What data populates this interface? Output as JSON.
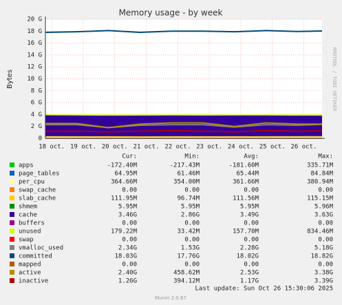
{
  "chart_data": {
    "type": "area",
    "title": "Memory usage - by week",
    "y_label": "Bytes",
    "side_text": "RRDTOOL / TOBI OETIKER",
    "x": [
      17.8,
      18.8,
      19.8,
      20.8,
      21.8,
      22.8,
      23.8,
      24.8,
      25.8,
      26.58
    ],
    "xlim": [
      17.8,
      26.58
    ],
    "xticks": [
      {
        "value": 18,
        "label": "18 oct."
      },
      {
        "value": 19,
        "label": "19 oct."
      },
      {
        "value": 20,
        "label": "20 oct."
      },
      {
        "value": 21,
        "label": "21 oct."
      },
      {
        "value": 22,
        "label": "22 oct."
      },
      {
        "value": 23,
        "label": "23 oct."
      },
      {
        "value": 24,
        "label": "24 oct."
      },
      {
        "value": 25,
        "label": "25 oct."
      },
      {
        "value": 26,
        "label": "26 oct."
      }
    ],
    "ylim": [
      0,
      20
    ],
    "yticks": [
      0,
      {
        "value": 2,
        "label": "2 G"
      },
      {
        "value": 4,
        "label": "4 G"
      },
      {
        "value": 6,
        "label": "6 G"
      },
      {
        "value": 8,
        "label": "8 G"
      },
      {
        "value": 10,
        "label": "10 G"
      },
      {
        "value": 12,
        "label": "12 G"
      },
      {
        "value": 14,
        "label": "14 G"
      },
      {
        "value": 16,
        "label": "16 G"
      },
      {
        "value": 18,
        "label": "18 G"
      },
      {
        "value": 20,
        "label": "20 G"
      }
    ],
    "grid": true,
    "stat_headers": [
      "Cur:",
      "Min:",
      "Avg:",
      "Max:"
    ],
    "series": [
      {
        "name": "apps",
        "color": "#00cc00",
        "stacked": true,
        "values": [
          -0.17,
          -0.18,
          -0.18,
          -0.19,
          -0.18,
          -0.18,
          -0.18,
          -0.18,
          -0.17,
          -0.17
        ],
        "stats": [
          "-172.40M",
          "-217.43M",
          "-181.60M",
          "335.71M"
        ]
      },
      {
        "name": "page_tables",
        "color": "#0066b3",
        "stacked": true,
        "values": [
          0.065,
          0.065,
          0.065,
          0.065,
          0.065,
          0.065,
          0.065,
          0.065,
          0.065,
          0.065
        ],
        "stats": [
          "64.95M",
          "61.46M",
          "65.44M",
          "84.84M"
        ]
      },
      {
        "name": "per_cpu",
        "color": "#ffff99",
        "stacked": true,
        "values": [
          0.36,
          0.36,
          0.36,
          0.36,
          0.36,
          0.36,
          0.36,
          0.36,
          0.36,
          0.36
        ],
        "stats": [
          "364.66M",
          "354.00M",
          "361.66M",
          "380.94M"
        ]
      },
      {
        "name": "swap_cache",
        "color": "#ff8000",
        "stacked": true,
        "values": [
          0,
          0,
          0,
          0,
          0,
          0,
          0,
          0,
          0,
          0
        ],
        "stats": [
          "0.00",
          "0.00",
          "0.00",
          "0.00"
        ]
      },
      {
        "name": "slab_cache",
        "color": "#ffcc00",
        "stacked": true,
        "values": [
          0.11,
          0.11,
          0.11,
          0.11,
          0.11,
          0.11,
          0.11,
          0.11,
          0.11,
          0.11
        ],
        "stats": [
          "111.95M",
          "96.74M",
          "111.56M",
          "115.15M"
        ]
      },
      {
        "name": "shmem",
        "color": "#008f00",
        "stacked": true,
        "values": [
          0.006,
          0.006,
          0.006,
          0.006,
          0.006,
          0.006,
          0.006,
          0.006,
          0.006,
          0.006
        ],
        "stats": [
          "5.95M",
          "5.95M",
          "5.95M",
          "5.96M"
        ]
      },
      {
        "name": "cache",
        "color": "#330099",
        "stacked": true,
        "values": [
          3.5,
          3.5,
          3.45,
          3.5,
          3.5,
          3.48,
          3.5,
          3.5,
          3.46,
          3.46
        ],
        "stats": [
          "3.46G",
          "2.86G",
          "3.49G",
          "3.63G"
        ]
      },
      {
        "name": "buffers",
        "color": "#990099",
        "stacked": true,
        "values": [
          0,
          0,
          0,
          0,
          0,
          0,
          0,
          0,
          0,
          0
        ],
        "stats": [
          "0.00",
          "0.00",
          "0.00",
          "0.00"
        ]
      },
      {
        "name": "unused",
        "color": "#ccff00",
        "stacked": true,
        "values": [
          0.16,
          0.15,
          0.2,
          0.15,
          0.16,
          0.17,
          0.14,
          0.16,
          0.18,
          0.18
        ],
        "stats": [
          "179.22M",
          "33.42M",
          "157.70M",
          "834.46M"
        ]
      },
      {
        "name": "swap",
        "color": "#ff0000",
        "stacked": true,
        "values": [
          0,
          0,
          0,
          0,
          0,
          0,
          0,
          0,
          0,
          0
        ],
        "stats": [
          "0.00",
          "0.00",
          "0.00",
          "0.00"
        ]
      },
      {
        "name": "vmalloc_used",
        "color": "#808080",
        "stacked": false,
        "values": [
          2.3,
          2.3,
          1.8,
          2.2,
          2.3,
          2.3,
          1.9,
          2.3,
          2.2,
          2.34
        ],
        "stats": [
          "2.34G",
          "1.53G",
          "2.28G",
          "5.18G"
        ]
      },
      {
        "name": "committed",
        "color": "#00487d",
        "stacked": false,
        "values": [
          17.8,
          17.9,
          18.1,
          17.8,
          18.0,
          18.0,
          17.9,
          18.1,
          17.95,
          18.03
        ],
        "stats": [
          "18.03G",
          "17.76G",
          "18.02G",
          "18.82G"
        ]
      },
      {
        "name": "mapped",
        "color": "#b35a00",
        "stacked": false,
        "values": [
          0,
          0,
          0,
          0,
          0,
          0,
          0,
          0,
          0,
          0
        ],
        "stats": [
          "0.00",
          "0.00",
          "0.00",
          "0.00"
        ]
      },
      {
        "name": "active",
        "color": "#b38f00",
        "stacked": false,
        "values": [
          2.5,
          2.5,
          1.8,
          2.4,
          2.6,
          2.6,
          2.0,
          2.6,
          2.4,
          2.4
        ],
        "stats": [
          "2.40G",
          "458.62M",
          "2.53G",
          "3.38G"
        ]
      },
      {
        "name": "inactive",
        "color": "#b30000",
        "stacked": false,
        "values": [
          1.2,
          1.2,
          1.1,
          1.2,
          1.3,
          1.2,
          1.1,
          1.3,
          1.2,
          1.26
        ],
        "stats": [
          "1.26G",
          "394.12M",
          "1.17G",
          "3.39G"
        ]
      }
    ],
    "last_update": "Last update: Sun Oct 26 15:30:06 2025",
    "footer": "Munin 2.0.67"
  }
}
